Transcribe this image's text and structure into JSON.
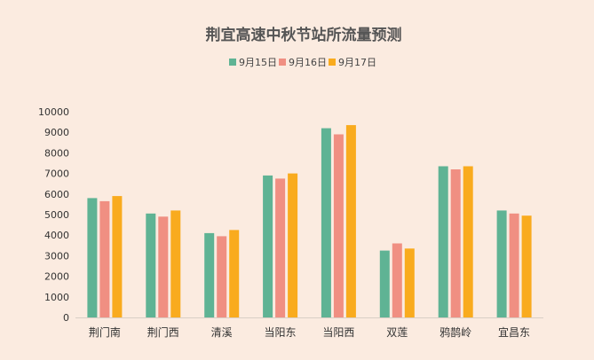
{
  "chart_data": {
    "type": "bar",
    "title": "荆宜高速中秋节站所流量预测",
    "xlabel": "",
    "ylabel": "",
    "ylim": [
      0,
      10000
    ],
    "yticks": [
      0,
      1000,
      2000,
      3000,
      4000,
      5000,
      6000,
      7000,
      8000,
      9000,
      10000
    ],
    "grid": false,
    "legend_position": "top-center",
    "categories": [
      "荆门南",
      "荆门西",
      "清溪",
      "当阳东",
      "当阳西",
      "双莲",
      "鸦鹊岭",
      "宜昌东"
    ],
    "series": [
      {
        "name": "9月15日",
        "color": "#5fb394",
        "values": [
          5800,
          5050,
          4100,
          6900,
          9200,
          3250,
          7350,
          5200
        ]
      },
      {
        "name": "9月16日",
        "color": "#f08f82",
        "values": [
          5650,
          4900,
          3950,
          6750,
          8900,
          3600,
          7200,
          5050
        ]
      },
      {
        "name": "9月17日",
        "color": "#f9ab1e",
        "values": [
          5900,
          5200,
          4250,
          7000,
          9350,
          3350,
          7350,
          4950
        ]
      }
    ]
  }
}
